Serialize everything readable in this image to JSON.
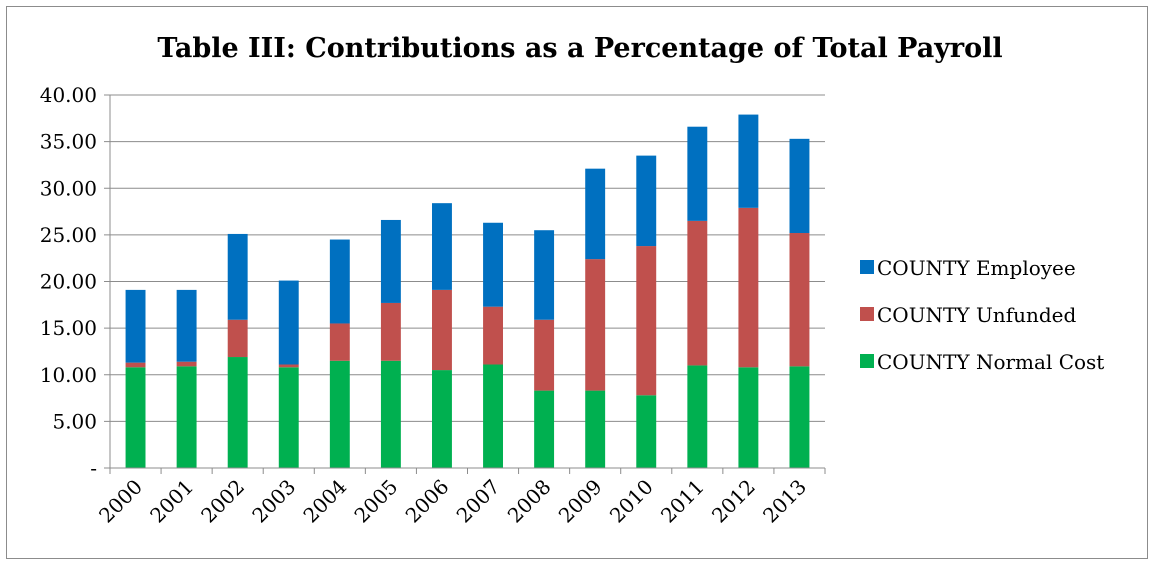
{
  "chart_data": {
    "type": "bar",
    "stacked": true,
    "title": "Table III:  Contributions as a Percentage of Total Payroll",
    "xlabel": "",
    "ylabel": "",
    "ylim": [
      0,
      40
    ],
    "yticks": [
      {
        "value": 0,
        "label": "-"
      },
      {
        "value": 5,
        "label": "5.00"
      },
      {
        "value": 10,
        "label": "10.00"
      },
      {
        "value": 15,
        "label": "15.00"
      },
      {
        "value": 20,
        "label": "20.00"
      },
      {
        "value": 25,
        "label": "25.00"
      },
      {
        "value": 30,
        "label": "30.00"
      },
      {
        "value": 35,
        "label": "35.00"
      },
      {
        "value": 40,
        "label": "40.00"
      }
    ],
    "grid": true,
    "legend_position": "right",
    "categories": [
      "2000",
      "2001",
      "2002",
      "2003",
      "2004",
      "2005",
      "2006",
      "2007",
      "2008",
      "2009",
      "2010",
      "2011",
      "2012",
      "2013"
    ],
    "series": [
      {
        "name": "COUNTY Normal Cost",
        "color": "#00b050",
        "values": [
          10.8,
          10.9,
          11.9,
          10.8,
          11.5,
          11.5,
          10.5,
          11.1,
          8.3,
          8.3,
          7.8,
          11.0,
          10.8,
          10.9
        ]
      },
      {
        "name": "COUNTY Unfunded",
        "color": "#c0504d",
        "values": [
          0.5,
          0.5,
          4.0,
          0.3,
          4.0,
          6.2,
          8.6,
          6.2,
          7.6,
          14.1,
          16.0,
          15.5,
          17.1,
          14.3
        ]
      },
      {
        "name": "COUNTY Employee",
        "color": "#0070c0",
        "values": [
          7.8,
          7.7,
          9.2,
          9.0,
          9.0,
          8.9,
          9.3,
          9.0,
          9.6,
          9.7,
          9.7,
          10.1,
          10.0,
          10.1
        ]
      }
    ],
    "legend_order": [
      "COUNTY Employee",
      "COUNTY Unfunded",
      "COUNTY Normal Cost"
    ]
  }
}
